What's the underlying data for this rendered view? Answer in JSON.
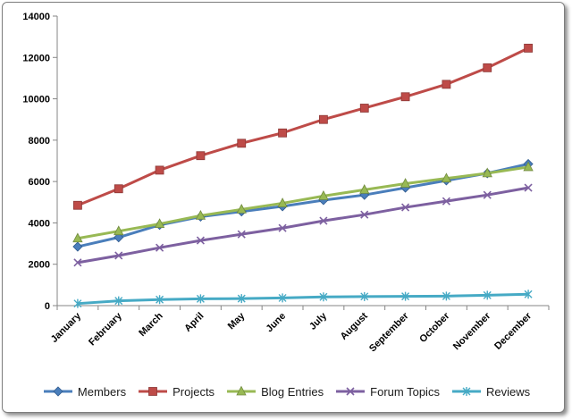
{
  "chart_data": {
    "type": "line",
    "categories": [
      "January",
      "February",
      "March",
      "April",
      "May",
      "June",
      "July",
      "August",
      "September",
      "October",
      "November",
      "December"
    ],
    "ylim": [
      0,
      14000
    ],
    "yticks": [
      0,
      2000,
      4000,
      6000,
      8000,
      10000,
      12000,
      14000
    ],
    "grid": false,
    "legend_position": "bottom",
    "series": [
      {
        "name": "Members",
        "color": "#4a7ebb",
        "marker": "diamond",
        "values": [
          2850,
          3300,
          3900,
          4300,
          4550,
          4800,
          5100,
          5350,
          5700,
          6050,
          6400,
          6850
        ]
      },
      {
        "name": "Projects",
        "color": "#be4b48",
        "marker": "square",
        "values": [
          4850,
          5650,
          6550,
          7250,
          7850,
          8350,
          9000,
          9550,
          10100,
          10700,
          11500,
          12450
        ]
      },
      {
        "name": "Blog Entries",
        "color": "#98b954",
        "marker": "triangle",
        "values": [
          3250,
          3600,
          3950,
          4350,
          4650,
          4950,
          5300,
          5600,
          5900,
          6150,
          6400,
          6700
        ]
      },
      {
        "name": "Forum Topics",
        "color": "#7d60a0",
        "marker": "x",
        "values": [
          2080,
          2420,
          2800,
          3150,
          3450,
          3750,
          4100,
          4400,
          4750,
          5050,
          5350,
          5700
        ]
      },
      {
        "name": "Reviews",
        "color": "#46aac5",
        "marker": "star",
        "values": [
          100,
          230,
          290,
          330,
          340,
          370,
          420,
          440,
          450,
          460,
          500,
          550
        ]
      }
    ]
  }
}
